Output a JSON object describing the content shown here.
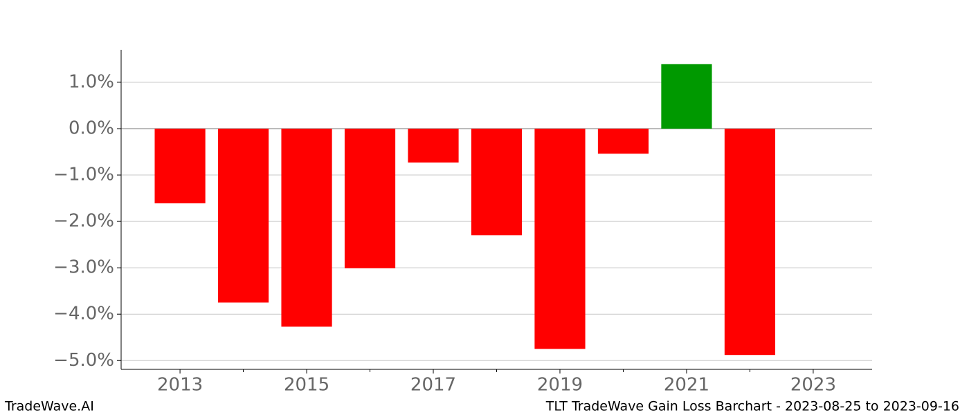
{
  "chart_data": {
    "type": "bar",
    "x": [
      2013,
      2014,
      2015,
      2016,
      2017,
      2018,
      2019,
      2020,
      2021,
      2022
    ],
    "values": [
      -1.61,
      -3.75,
      -4.27,
      -3.01,
      -0.73,
      -2.3,
      -4.75,
      -0.54,
      1.39,
      -4.88
    ],
    "positive_color": "#009900",
    "negative_color": "#ff0000",
    "xlim": [
      2012.07,
      2023.93
    ],
    "xticks": [
      2013,
      2015,
      2017,
      2019,
      2021,
      2023
    ],
    "minor_xticks": [
      2014,
      2016,
      2018,
      2020,
      2022
    ],
    "ylim": [
      -5.19,
      1.7
    ],
    "yticks": [
      {
        "value": 1,
        "label": "1.0%"
      },
      {
        "value": 0,
        "label": "0.0%"
      },
      {
        "value": -1,
        "label": "−1.0%"
      },
      {
        "value": -2,
        "label": "−2.0%"
      },
      {
        "value": -3,
        "label": "−3.0%"
      },
      {
        "value": -4,
        "label": "−4.0%"
      },
      {
        "value": -5,
        "label": "−5.0%"
      }
    ],
    "grid": true,
    "footer_left": "TradeWave.AI",
    "footer_right": "TLT TradeWave Gain Loss Barchart - 2023-08-25 to 2023-09-16"
  }
}
